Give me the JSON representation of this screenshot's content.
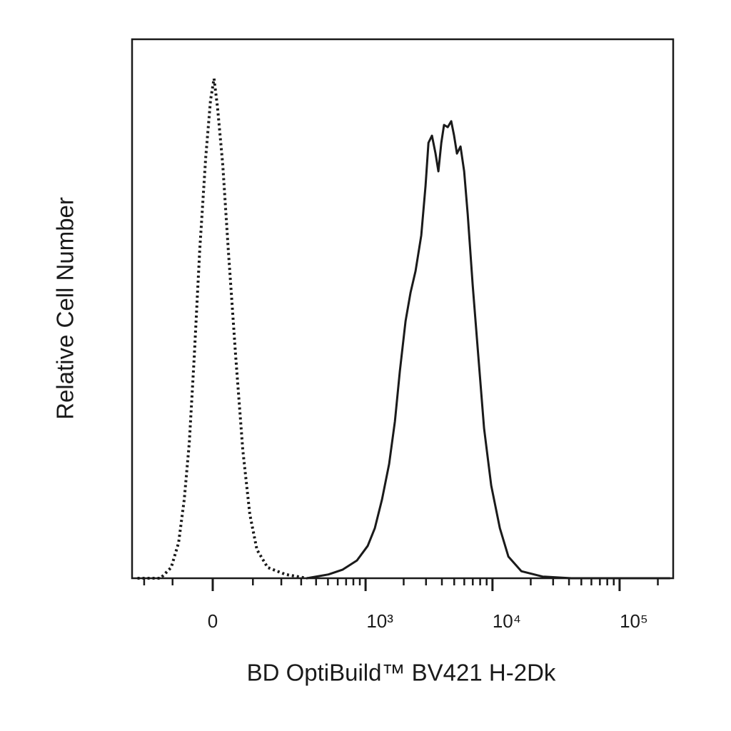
{
  "chart_data": {
    "type": "line",
    "xlabel": "BD OptiBuild™ BV421 H-2Dk",
    "ylabel": "Relative Cell Number",
    "xscale": "asinh",
    "xlim": [
      -257,
      264000
    ],
    "ylim": [
      0,
      100
    ],
    "xticks": [
      0,
      {
        "value": 1000,
        "label": "10³"
      },
      {
        "value": 10000,
        "label": "10⁴"
      },
      {
        "value": 100000,
        "label": "10⁵"
      }
    ],
    "xminorticks": [
      -200,
      -100,
      100,
      200,
      300,
      400,
      500,
      600,
      700,
      800,
      900,
      2000,
      3000,
      4000,
      5000,
      6000,
      7000,
      8000,
      9000,
      20000,
      30000,
      40000,
      50000,
      60000,
      70000,
      80000,
      90000,
      200000
    ],
    "series": [
      {
        "color": "#1a1a1a",
        "dash": "dotted",
        "x": [
          -230,
          -138,
          -104,
          -83,
          -68,
          -55,
          -43,
          -30,
          -16,
          -5,
          3,
          11,
          23,
          36,
          54,
          72,
          91,
          112,
          147,
          219,
          336
        ],
        "values": [
          0,
          0,
          2.0,
          6.6,
          14.6,
          25.2,
          41.1,
          60.9,
          78.1,
          88.7,
          92.7,
          87.4,
          76.8,
          60.9,
          41.1,
          23.8,
          11.9,
          5.3,
          2.0,
          0.7,
          0
        ]
      },
      {
        "color": "#1a1a1a",
        "dash": "solid",
        "x": [
          335,
          505,
          658,
          854,
          1040,
          1184,
          1349,
          1536,
          1705,
          1866,
          2070,
          2265,
          2481,
          2752,
          2974,
          3137,
          3339,
          3566,
          3755,
          3956,
          4158,
          4448,
          4738,
          4990,
          5254,
          5607,
          5985,
          6388,
          6993,
          7749,
          8593,
          9778,
          11428,
          13356,
          16884,
          24822,
          41706,
          250000
        ],
        "values": [
          0,
          0.7,
          1.6,
          3.3,
          6.0,
          9.3,
          14.6,
          21.2,
          29.1,
          38.4,
          47.7,
          53.0,
          57.0,
          63.6,
          72.8,
          80.8,
          82.1,
          78.8,
          75.5,
          80.8,
          84.1,
          83.7,
          84.8,
          82.1,
          78.8,
          80.1,
          75.5,
          67.5,
          54.3,
          41.1,
          27.8,
          17.2,
          9.3,
          4.0,
          1.3,
          0.3,
          0,
          0
        ]
      }
    ]
  }
}
